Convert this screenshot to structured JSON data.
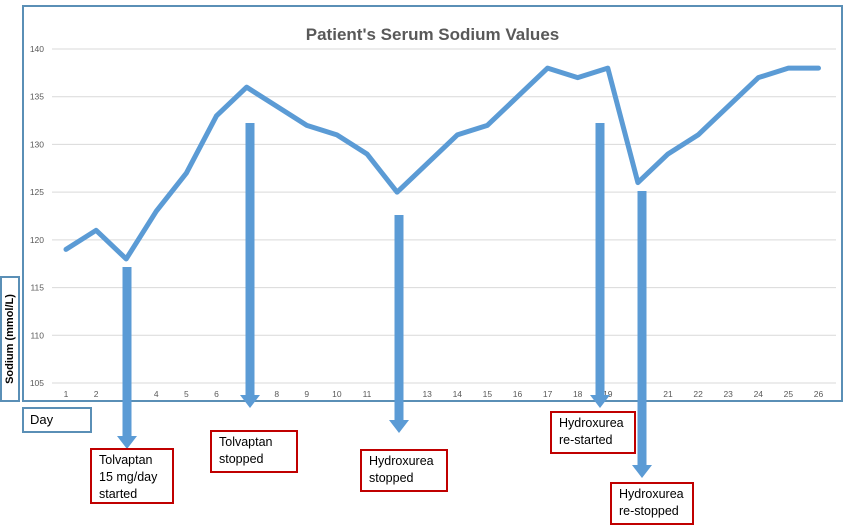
{
  "chart_data": {
    "type": "line",
    "title": "Patient's Serum Sodium Values",
    "ylabel": "Sodium (mmol/L)",
    "xlabel": "Day",
    "ylim": [
      105,
      140
    ],
    "yticks": [
      105,
      110,
      115,
      120,
      125,
      130,
      135,
      140
    ],
    "x": [
      1,
      2,
      3,
      4,
      5,
      6,
      7,
      8,
      9,
      10,
      11,
      12,
      13,
      14,
      15,
      16,
      17,
      18,
      19,
      20,
      21,
      22,
      23,
      24,
      25,
      26
    ],
    "xtick_labels": [
      "1",
      "2",
      "",
      "4",
      "5",
      "6",
      "",
      "8",
      "9",
      "10",
      "11",
      "",
      "13",
      "14",
      "15",
      "16",
      "17",
      "18",
      "19",
      "",
      "21",
      "22",
      "23",
      "24",
      "25",
      "26"
    ],
    "values": [
      119,
      121,
      118,
      123,
      127,
      133,
      136,
      134,
      132,
      131,
      129,
      125,
      128,
      131,
      132,
      135,
      138,
      137,
      138,
      126,
      129,
      131,
      134,
      137,
      138,
      138
    ],
    "line_color": "#5b9bd5",
    "grid": true,
    "annotations": [
      {
        "day": 3,
        "text": "Tolvaptan\n15 mg/day\nstarted"
      },
      {
        "day": 7,
        "text": "Tolvaptan\nstopped"
      },
      {
        "day": 12,
        "text": "Hydroxurea\nstopped"
      },
      {
        "day": 19,
        "text": "Hydroxurea\nre-started"
      },
      {
        "day": 20,
        "text": "Hydroxurea\nre-stopped"
      }
    ],
    "callout_border_color": "#c00000"
  }
}
